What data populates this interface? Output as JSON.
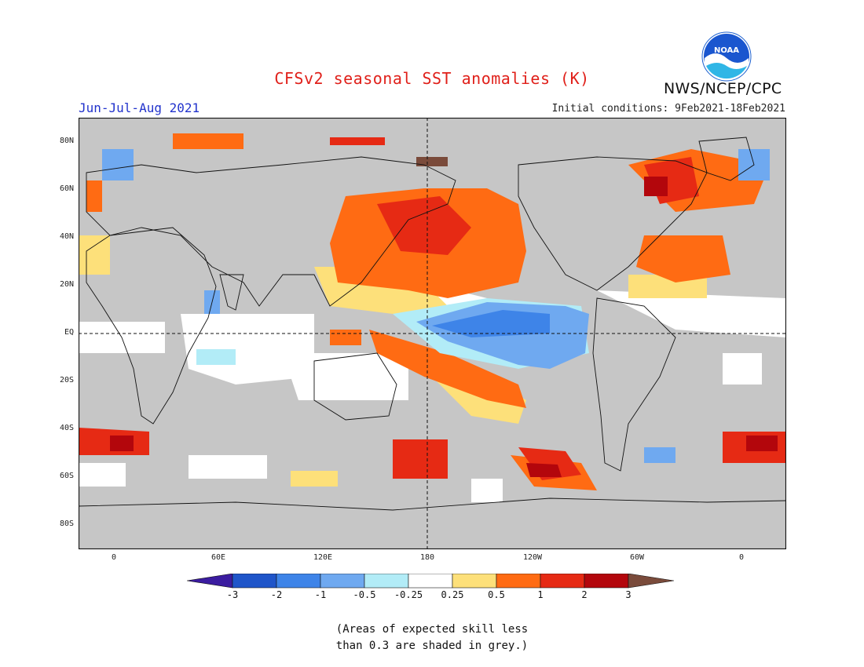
{
  "title": "CFSv2 seasonal SST anomalies (K)",
  "period": "Jun-Jul-Aug 2021",
  "initial_conditions": "Initial conditions: 9Feb2021-18Feb2021",
  "agency": "NWS/NCEP/CPC",
  "logo_text": "NOAA",
  "lat_labels": [
    "80N",
    "60N",
    "40N",
    "20N",
    "EQ",
    "20S",
    "40S",
    "60S",
    "80S"
  ],
  "lon_labels": [
    "0",
    "60E",
    "120E",
    "180",
    "120W",
    "60W",
    "0"
  ],
  "colorbar": {
    "labels": [
      "-3",
      "-2",
      "-1",
      "-0.5",
      "-0.25",
      "0.25",
      "0.5",
      "1",
      "2",
      "3"
    ],
    "colors": [
      "#3b1ca0",
      "#1f55c9",
      "#3e84e8",
      "#6fa9f0",
      "#b2ecf7",
      "#ffffff",
      "#fde07a",
      "#ff6b13",
      "#e62a14",
      "#b3060c",
      "#7a4b3b"
    ]
  },
  "note": [
    "(Areas of expected skill less",
    "than 0.3 are shaded in grey.)"
  ]
}
